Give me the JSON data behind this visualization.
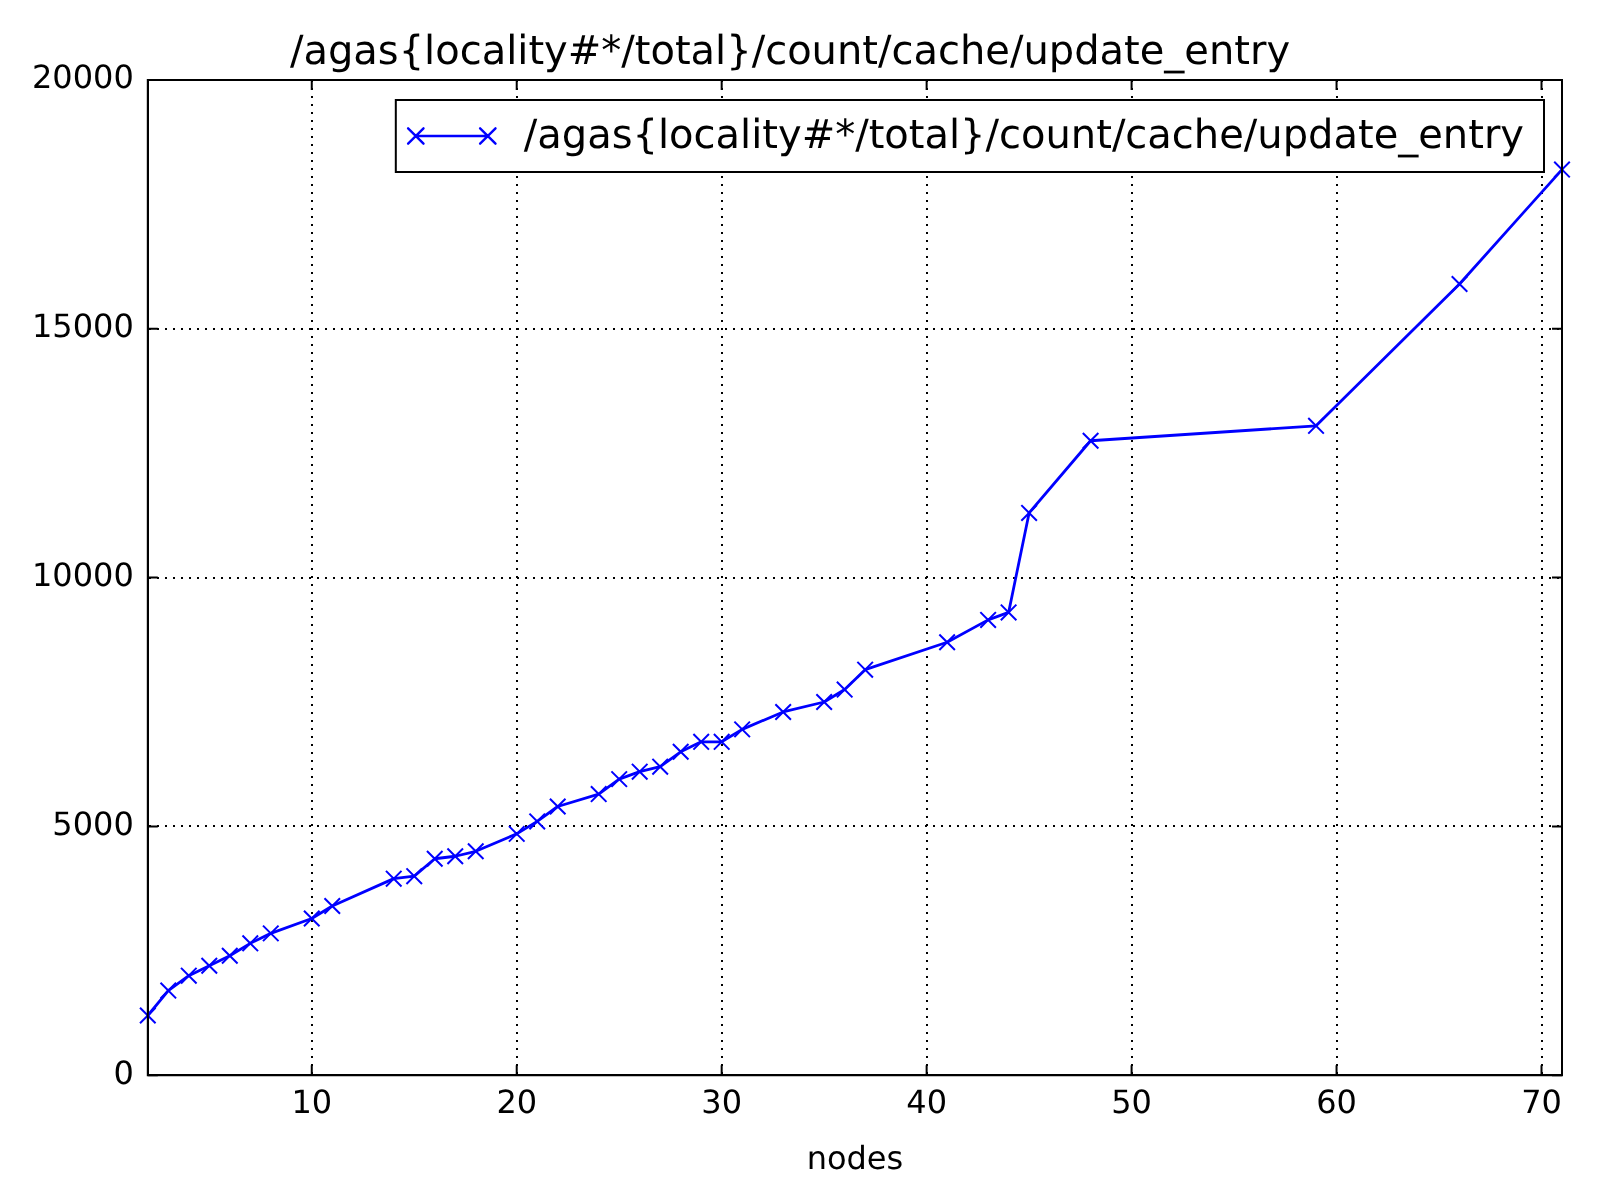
{
  "chart_data": {
    "type": "line",
    "title": "/agas{locality#*/total}/count/cache/update_entry",
    "xlabel": "nodes",
    "x": [
      2,
      3,
      4,
      5,
      6,
      7,
      8,
      10,
      11,
      14,
      15,
      16,
      17,
      18,
      20,
      21,
      22,
      24,
      25,
      26,
      27,
      28,
      29,
      30,
      31,
      33,
      35,
      36,
      37,
      41,
      43,
      44,
      45,
      48,
      59,
      66,
      71
    ],
    "series": [
      {
        "name": "/agas{locality#*/total}/count/cache/update_entry",
        "color": "#0000ff",
        "values": [
          1200,
          1700,
          2000,
          2200,
          2400,
          2650,
          2850,
          3150,
          3400,
          3950,
          4000,
          4350,
          4400,
          4500,
          4850,
          5100,
          5400,
          5650,
          5950,
          6100,
          6200,
          6500,
          6700,
          6700,
          6950,
          7300,
          7500,
          7750,
          8150,
          8700,
          9150,
          9300,
          11300,
          12750,
          13050,
          15900,
          18200
        ]
      }
    ],
    "xlim": [
      2,
      71
    ],
    "xticks": [
      10,
      20,
      30,
      40,
      50,
      60,
      70
    ],
    "ylim": [
      0,
      20000
    ],
    "yticks": [
      0,
      5000,
      10000,
      15000,
      20000
    ],
    "grid": true,
    "legend": "top right",
    "marker": "cross",
    "line_style": "solid"
  }
}
